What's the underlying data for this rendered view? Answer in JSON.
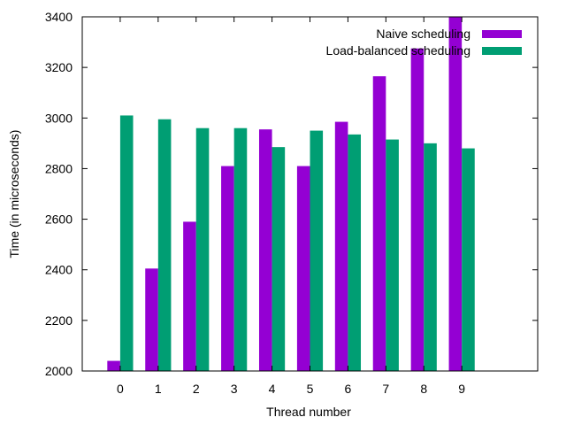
{
  "chart_data": {
    "type": "bar",
    "title": "",
    "xlabel": "Thread number",
    "ylabel": "Time (in microseconds)",
    "categories": [
      "0",
      "1",
      "2",
      "3",
      "4",
      "5",
      "6",
      "7",
      "8",
      "9"
    ],
    "ylim": [
      2000,
      3400
    ],
    "yticks": [
      "2000",
      "2200",
      "2400",
      "2600",
      "2800",
      "3000",
      "3200",
      "3400"
    ],
    "grid": false,
    "legend": "top-right",
    "series": [
      {
        "name": "Naive scheduling",
        "color": "#9400d3",
        "values": [
          2040,
          2405,
          2590,
          2810,
          2955,
          2810,
          2985,
          3165,
          3275,
          3400
        ]
      },
      {
        "name": "Load-balanced scheduling",
        "color": "#009e73",
        "values": [
          3010,
          2995,
          2960,
          2960,
          2885,
          2950,
          2935,
          2915,
          2900,
          2880
        ]
      }
    ]
  }
}
